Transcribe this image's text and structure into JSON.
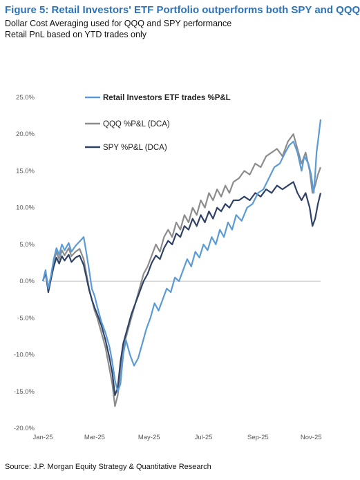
{
  "header": {
    "title": "Figure 5: Retail Investors' ETF Portfolio outperforms both SPY and QQQ",
    "subtitle1": "Dollar Cost Averaging used for QQQ and SPY performance",
    "subtitle2": "Retail PnL based on YTD trades only"
  },
  "source": "Source: J.P. Morgan Equity Strategy & Quantitative Research",
  "colors": {
    "retail": "#5b9bd5",
    "qqq": "#8c8c8c",
    "spy": "#2f4266"
  },
  "chart_data": {
    "type": "line",
    "x_ticks": [
      "Jan-25",
      "Mar-25",
      "May-25",
      "Jul-25",
      "Sep-25",
      "Nov-25"
    ],
    "x_tick_index": [
      0,
      1.9,
      3.9,
      5.9,
      7.9,
      9.85
    ],
    "x_range": [
      0,
      10.2
    ],
    "y_ticks": [
      "25.0%",
      "20.0%",
      "15.0%",
      "10.0%",
      "5.0%",
      "0.0%",
      "-5.0%",
      "-10.0%",
      "-15.0%",
      "-20.0%"
    ],
    "ylim": [
      -20,
      25
    ],
    "legend_position": "top-center",
    "series": [
      {
        "name": "Retail Investors ETF trades %P&L",
        "color": "#5b9bd5",
        "points": [
          [
            0,
            0
          ],
          [
            0.1,
            1.5
          ],
          [
            0.2,
            -1.0
          ],
          [
            0.3,
            0.8
          ],
          [
            0.4,
            3.0
          ],
          [
            0.5,
            4.5
          ],
          [
            0.6,
            3.6
          ],
          [
            0.7,
            5.0
          ],
          [
            0.8,
            4.2
          ],
          [
            0.95,
            5.2
          ],
          [
            1.05,
            4.0
          ],
          [
            1.2,
            4.8
          ],
          [
            1.35,
            5.4
          ],
          [
            1.5,
            6.0
          ],
          [
            1.6,
            3.8
          ],
          [
            1.7,
            1.5
          ],
          [
            1.8,
            -1.0
          ],
          [
            1.9,
            -2.0
          ],
          [
            2.0,
            -3.5
          ],
          [
            2.15,
            -5.5
          ],
          [
            2.3,
            -7.0
          ],
          [
            2.45,
            -9.0
          ],
          [
            2.55,
            -11.0
          ],
          [
            2.65,
            -13.5
          ],
          [
            2.75,
            -15.0
          ],
          [
            2.85,
            -14.0
          ],
          [
            2.95,
            -10.0
          ],
          [
            3.05,
            -8.0
          ],
          [
            3.2,
            -10.0
          ],
          [
            3.35,
            -11.5
          ],
          [
            3.5,
            -10.5
          ],
          [
            3.65,
            -8.5
          ],
          [
            3.8,
            -6.5
          ],
          [
            3.95,
            -5.0
          ],
          [
            4.1,
            -3.0
          ],
          [
            4.25,
            -4.0
          ],
          [
            4.4,
            -2.5
          ],
          [
            4.55,
            -1.0
          ],
          [
            4.7,
            -1.5
          ],
          [
            4.85,
            0.5
          ],
          [
            5.0,
            0.0
          ],
          [
            5.15,
            1.5
          ],
          [
            5.3,
            3.0
          ],
          [
            5.45,
            2.0
          ],
          [
            5.6,
            4.0
          ],
          [
            5.75,
            3.2
          ],
          [
            5.9,
            5.0
          ],
          [
            6.05,
            4.2
          ],
          [
            6.2,
            6.0
          ],
          [
            6.35,
            5.0
          ],
          [
            6.5,
            7.0
          ],
          [
            6.65,
            6.0
          ],
          [
            6.8,
            8.0
          ],
          [
            6.95,
            7.0
          ],
          [
            7.1,
            9.0
          ],
          [
            7.3,
            8.2
          ],
          [
            7.5,
            10.0
          ],
          [
            7.7,
            10.5
          ],
          [
            7.9,
            12.0
          ],
          [
            8.1,
            12.5
          ],
          [
            8.3,
            14.0
          ],
          [
            8.5,
            15.5
          ],
          [
            8.7,
            16.0
          ],
          [
            8.9,
            17.5
          ],
          [
            9.05,
            18.5
          ],
          [
            9.2,
            19.0
          ],
          [
            9.35,
            17.5
          ],
          [
            9.5,
            15.0
          ],
          [
            9.6,
            17.0
          ],
          [
            9.75,
            16.0
          ],
          [
            9.85,
            14.5
          ],
          [
            9.95,
            12.0
          ],
          [
            10.0,
            14.5
          ],
          [
            10.05,
            17.5
          ],
          [
            10.12,
            19.5
          ],
          [
            10.2,
            22.0
          ]
        ]
      },
      {
        "name": "QQQ %P&L (DCA)",
        "color": "#8c8c8c",
        "points": [
          [
            0,
            0
          ],
          [
            0.1,
            1.0
          ],
          [
            0.2,
            -1.2
          ],
          [
            0.3,
            0.5
          ],
          [
            0.4,
            2.5
          ],
          [
            0.5,
            4.0
          ],
          [
            0.6,
            3.0
          ],
          [
            0.7,
            4.2
          ],
          [
            0.8,
            3.5
          ],
          [
            0.95,
            4.5
          ],
          [
            1.05,
            3.4
          ],
          [
            1.2,
            4.0
          ],
          [
            1.35,
            4.4
          ],
          [
            1.5,
            3.0
          ],
          [
            1.6,
            1.0
          ],
          [
            1.7,
            -1.0
          ],
          [
            1.8,
            -2.5
          ],
          [
            1.9,
            -4.0
          ],
          [
            2.0,
            -5.0
          ],
          [
            2.15,
            -7.0
          ],
          [
            2.3,
            -9.0
          ],
          [
            2.45,
            -12.0
          ],
          [
            2.55,
            -14.0
          ],
          [
            2.65,
            -17.0
          ],
          [
            2.75,
            -15.5
          ],
          [
            2.85,
            -12.0
          ],
          [
            2.95,
            -9.0
          ],
          [
            3.1,
            -7.0
          ],
          [
            3.25,
            -5.0
          ],
          [
            3.4,
            -3.0
          ],
          [
            3.55,
            -1.0
          ],
          [
            3.7,
            1.0
          ],
          [
            3.85,
            2.0
          ],
          [
            4.0,
            3.5
          ],
          [
            4.15,
            5.0
          ],
          [
            4.3,
            4.0
          ],
          [
            4.45,
            6.0
          ],
          [
            4.6,
            7.0
          ],
          [
            4.75,
            6.0
          ],
          [
            4.9,
            8.0
          ],
          [
            5.05,
            7.0
          ],
          [
            5.2,
            9.0
          ],
          [
            5.35,
            8.0
          ],
          [
            5.5,
            10.0
          ],
          [
            5.65,
            9.0
          ],
          [
            5.8,
            11.0
          ],
          [
            5.95,
            10.0
          ],
          [
            6.1,
            12.0
          ],
          [
            6.25,
            11.0
          ],
          [
            6.4,
            12.5
          ],
          [
            6.55,
            11.5
          ],
          [
            6.7,
            13.0
          ],
          [
            6.85,
            12.0
          ],
          [
            7.0,
            13.5
          ],
          [
            7.2,
            14.0
          ],
          [
            7.4,
            15.0
          ],
          [
            7.6,
            14.5
          ],
          [
            7.8,
            16.0
          ],
          [
            8.0,
            15.5
          ],
          [
            8.2,
            17.0
          ],
          [
            8.4,
            17.5
          ],
          [
            8.6,
            18.0
          ],
          [
            8.8,
            17.0
          ],
          [
            9.0,
            19.0
          ],
          [
            9.2,
            20.0
          ],
          [
            9.35,
            18.0
          ],
          [
            9.5,
            16.0
          ],
          [
            9.65,
            17.5
          ],
          [
            9.8,
            15.0
          ],
          [
            9.9,
            12.0
          ],
          [
            10.0,
            13.0
          ],
          [
            10.1,
            14.5
          ],
          [
            10.2,
            15.5
          ]
        ]
      },
      {
        "name": "SPY %P&L (DCA)",
        "color": "#2f4266",
        "points": [
          [
            0,
            0
          ],
          [
            0.1,
            1.3
          ],
          [
            0.2,
            -1.5
          ],
          [
            0.3,
            0.3
          ],
          [
            0.4,
            2.0
          ],
          [
            0.5,
            3.2
          ],
          [
            0.6,
            2.4
          ],
          [
            0.7,
            3.4
          ],
          [
            0.8,
            2.8
          ],
          [
            0.95,
            3.6
          ],
          [
            1.05,
            2.6
          ],
          [
            1.2,
            3.2
          ],
          [
            1.35,
            3.5
          ],
          [
            1.5,
            2.2
          ],
          [
            1.6,
            0.5
          ],
          [
            1.7,
            -1.2
          ],
          [
            1.8,
            -2.5
          ],
          [
            1.9,
            -3.6
          ],
          [
            2.0,
            -4.5
          ],
          [
            2.15,
            -6.0
          ],
          [
            2.3,
            -8.0
          ],
          [
            2.45,
            -10.5
          ],
          [
            2.55,
            -12.5
          ],
          [
            2.65,
            -15.5
          ],
          [
            2.75,
            -14.5
          ],
          [
            2.85,
            -11.0
          ],
          [
            2.95,
            -8.5
          ],
          [
            3.1,
            -6.5
          ],
          [
            3.25,
            -4.5
          ],
          [
            3.4,
            -3.0
          ],
          [
            3.55,
            -1.5
          ],
          [
            3.7,
            0.0
          ],
          [
            3.85,
            1.0
          ],
          [
            4.0,
            2.5
          ],
          [
            4.15,
            3.5
          ],
          [
            4.3,
            3.0
          ],
          [
            4.45,
            4.5
          ],
          [
            4.6,
            5.5
          ],
          [
            4.75,
            5.0
          ],
          [
            4.9,
            6.5
          ],
          [
            5.05,
            6.0
          ],
          [
            5.2,
            7.5
          ],
          [
            5.35,
            7.0
          ],
          [
            5.5,
            8.5
          ],
          [
            5.65,
            7.5
          ],
          [
            5.8,
            9.0
          ],
          [
            5.95,
            8.0
          ],
          [
            6.1,
            9.5
          ],
          [
            6.25,
            8.5
          ],
          [
            6.4,
            10.0
          ],
          [
            6.55,
            9.5
          ],
          [
            6.7,
            10.5
          ],
          [
            6.85,
            10.0
          ],
          [
            7.0,
            11.0
          ],
          [
            7.2,
            11.0
          ],
          [
            7.4,
            11.5
          ],
          [
            7.6,
            11.0
          ],
          [
            7.8,
            12.0
          ],
          [
            8.0,
            11.5
          ],
          [
            8.2,
            12.5
          ],
          [
            8.4,
            12.0
          ],
          [
            8.6,
            13.0
          ],
          [
            8.8,
            12.5
          ],
          [
            9.0,
            13.0
          ],
          [
            9.2,
            13.5
          ],
          [
            9.35,
            12.0
          ],
          [
            9.5,
            11.0
          ],
          [
            9.65,
            12.0
          ],
          [
            9.8,
            10.0
          ],
          [
            9.9,
            7.5
          ],
          [
            10.0,
            8.5
          ],
          [
            10.1,
            10.5
          ],
          [
            10.2,
            12.0
          ]
        ]
      }
    ]
  }
}
